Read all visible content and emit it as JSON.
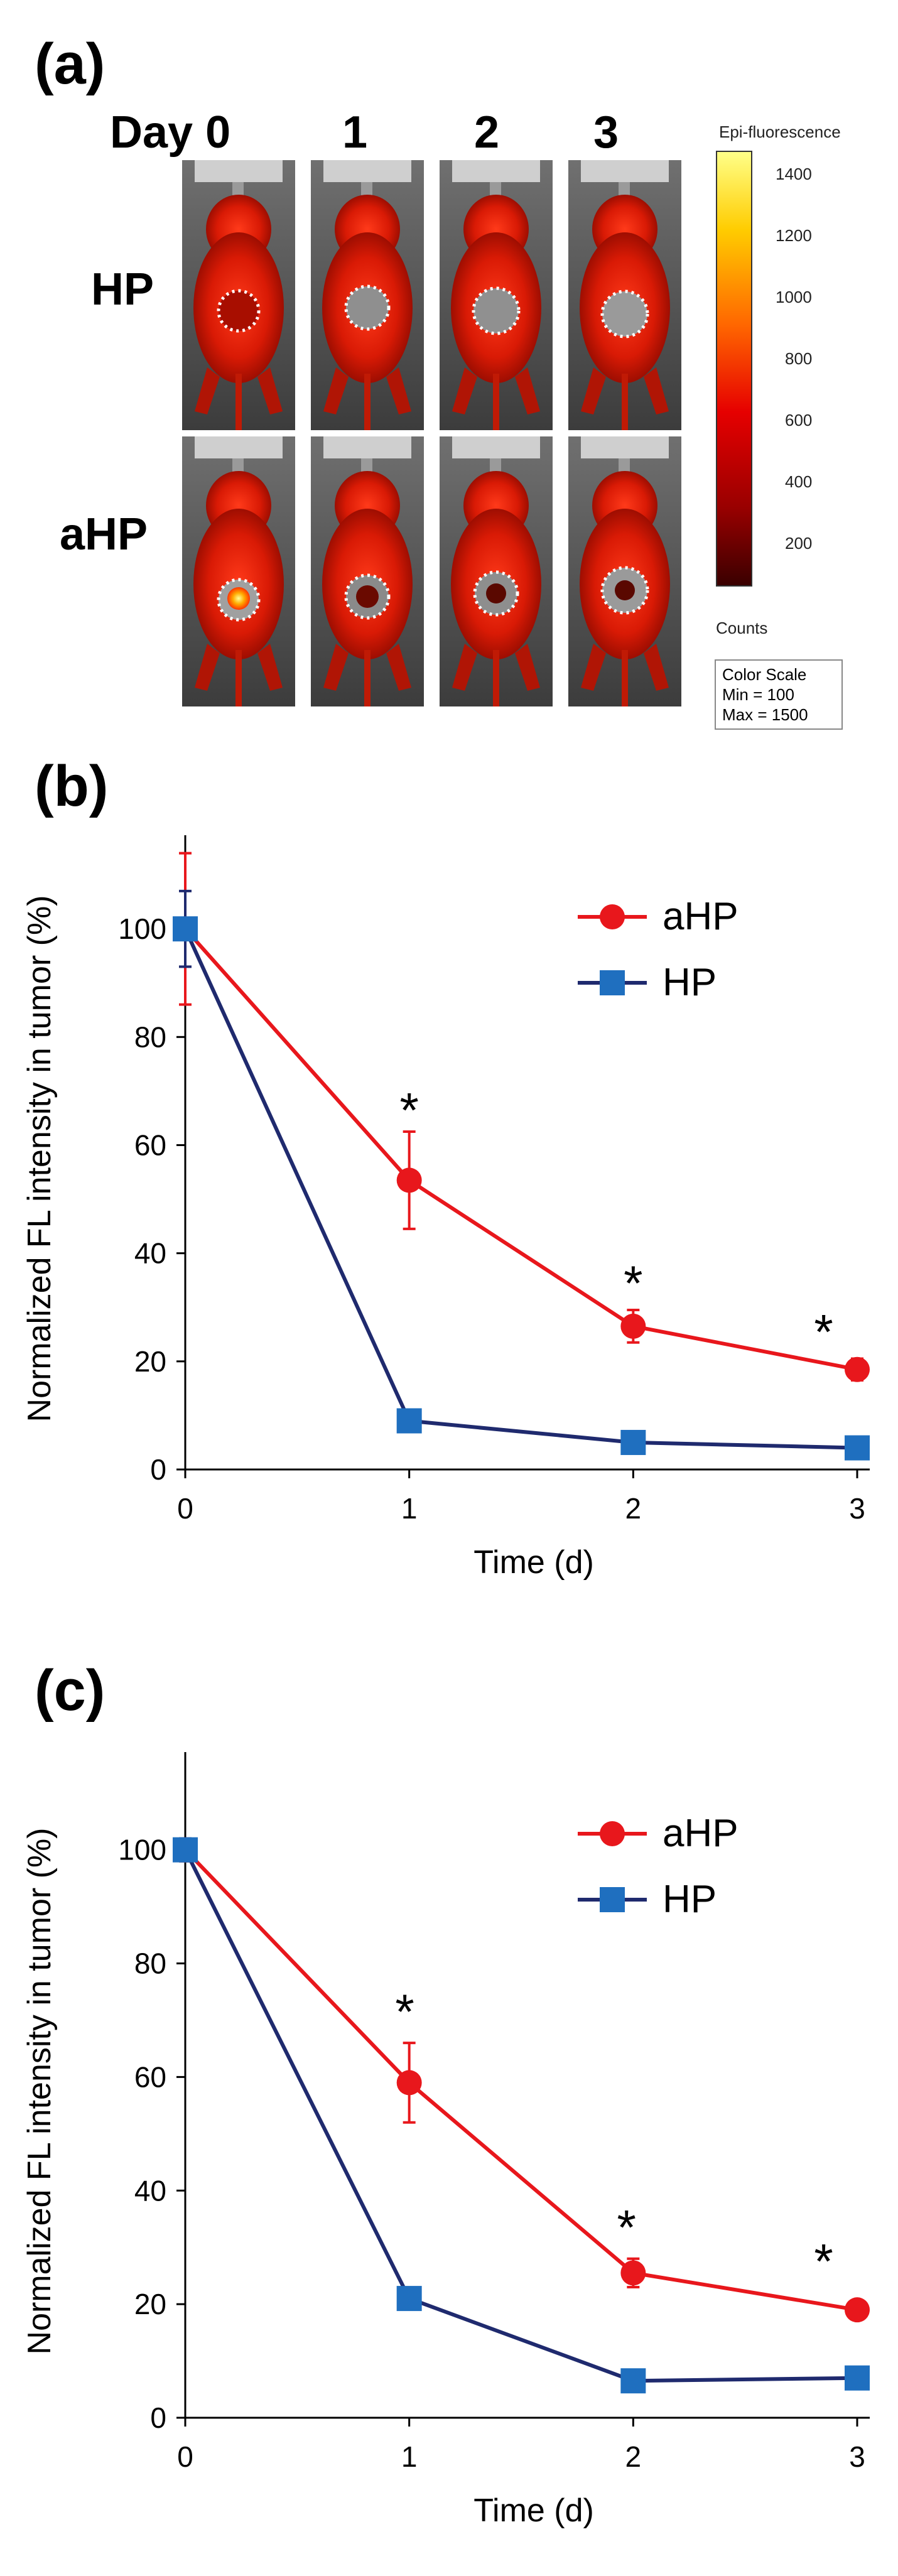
{
  "panel_a": {
    "label": "(a)",
    "columns": [
      "Day 0",
      "1",
      "2",
      "3"
    ],
    "rows": [
      "HP",
      "aHP"
    ],
    "colorbar": {
      "title": "Epi-fluorescence",
      "ticks": [
        "1400",
        "1200",
        "1000",
        "800",
        "600",
        "400",
        "200"
      ],
      "counts_label": "Counts",
      "scale_title": "Color Scale",
      "scale_min": "Min = 100",
      "scale_max": "Max = 1500",
      "colors": [
        "#ffff88",
        "#ffcc00",
        "#ff6600",
        "#e60000",
        "#990000",
        "#3a0000"
      ]
    }
  },
  "chart_data": [
    {
      "type": "line",
      "panel_label": "(b)",
      "title": "",
      "xlabel": "Time (d)",
      "ylabel": "Normalized FL intensity in tumor (%)",
      "x": [
        0,
        1,
        2,
        3
      ],
      "xlim": [
        0,
        3
      ],
      "ylim": [
        0,
        115
      ],
      "xticks": [
        "0",
        "1",
        "2",
        "3"
      ],
      "yticks": [
        "0",
        "20",
        "40",
        "60",
        "80",
        "100"
      ],
      "legend_position": "top-right",
      "series": [
        {
          "name": "aHP",
          "color": "#e8171c",
          "marker": "circle",
          "values": [
            100,
            53.5,
            26.5,
            18.5
          ],
          "errors": [
            14,
            9,
            3,
            2
          ]
        },
        {
          "name": "HP",
          "color": "#1f2a6e",
          "marker": "square",
          "values": [
            100,
            9,
            5,
            4
          ],
          "errors": [
            7,
            1.5,
            1,
            1
          ]
        }
      ],
      "significance": [
        {
          "x": 1,
          "y": 68,
          "text": "*"
        },
        {
          "x": 2,
          "y": 36,
          "text": "*"
        },
        {
          "x": 2.85,
          "y": 27,
          "text": "*"
        }
      ]
    },
    {
      "type": "line",
      "panel_label": "(c)",
      "title": "",
      "xlabel": "Time (d)",
      "ylabel": "Normalized FL intensity in tumor (%)",
      "x": [
        0,
        1,
        2,
        3
      ],
      "xlim": [
        0,
        3
      ],
      "ylim": [
        0,
        115
      ],
      "xticks": [
        "0",
        "1",
        "2",
        "3"
      ],
      "yticks": [
        "0",
        "20",
        "40",
        "60",
        "80",
        "100"
      ],
      "legend_position": "top-right",
      "series": [
        {
          "name": "aHP",
          "color": "#e8171c",
          "marker": "circle",
          "values": [
            100,
            59,
            25.5,
            19
          ],
          "errors": [
            2,
            7,
            2.5,
            1
          ]
        },
        {
          "name": "HP",
          "color": "#1f2a6e",
          "marker": "square",
          "values": [
            100,
            21,
            6.5,
            7
          ],
          "errors": [
            2,
            1.5,
            1,
            1
          ]
        }
      ],
      "significance": [
        {
          "x": 0.98,
          "y": 73,
          "text": "*"
        },
        {
          "x": 1.97,
          "y": 35,
          "text": "*"
        },
        {
          "x": 2.85,
          "y": 29,
          "text": "*"
        }
      ]
    }
  ]
}
